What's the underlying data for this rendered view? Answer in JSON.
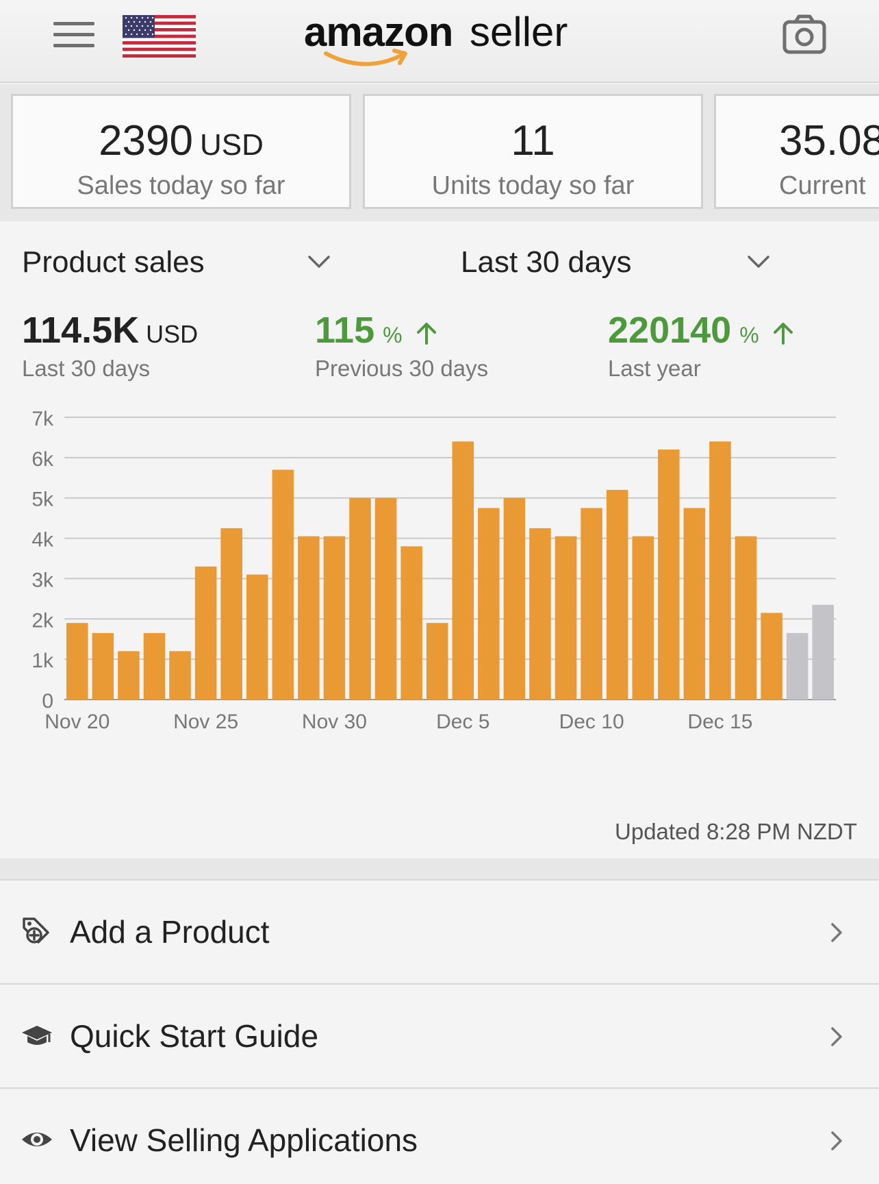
{
  "header": {
    "logo_word1": "amazon",
    "logo_word2": "seller",
    "menu_icon": "hamburger-icon",
    "flag_icon": "us-flag-icon",
    "camera_icon": "camera-icon"
  },
  "stats": [
    {
      "value": "2390",
      "unit": "USD",
      "label": "Sales today so far"
    },
    {
      "value": "11",
      "unit": "",
      "label": "Units today so far"
    },
    {
      "value": "35.08",
      "unit": "",
      "label": "Current"
    }
  ],
  "sales": {
    "metric_dropdown": "Product sales",
    "range_dropdown": "Last 30 days",
    "total_value": "114.5K",
    "total_unit": "USD",
    "total_label": "Last 30 days",
    "prev_value": "115",
    "prev_unit": "%",
    "prev_label": "Previous 30 days",
    "year_value": "220140",
    "year_unit": "%",
    "year_label": "Last year",
    "updated": "Updated 8:28 PM NZDT",
    "colors": {
      "bar": "#e99a35",
      "bar_pending": "#c4c3c8",
      "positive": "#4c9a3c"
    }
  },
  "chart_data": {
    "type": "bar",
    "title": "",
    "xlabel": "",
    "ylabel": "",
    "ylim": [
      0,
      7000
    ],
    "yticks": [
      0,
      1000,
      2000,
      3000,
      4000,
      5000,
      6000,
      7000
    ],
    "ytick_labels": [
      "0",
      "1k",
      "2k",
      "3k",
      "4k",
      "5k",
      "6k",
      "7k"
    ],
    "xtick_labels": [
      "Nov 20",
      "Nov 25",
      "Nov 30",
      "Dec 5",
      "Dec 10",
      "Dec 15"
    ],
    "categories": [
      "Nov 20",
      "Nov 21",
      "Nov 22",
      "Nov 23",
      "Nov 24",
      "Nov 25",
      "Nov 26",
      "Nov 27",
      "Nov 28",
      "Nov 29",
      "Nov 30",
      "Dec 1",
      "Dec 2",
      "Dec 3",
      "Dec 4",
      "Dec 5",
      "Dec 6",
      "Dec 7",
      "Dec 8",
      "Dec 9",
      "Dec 10",
      "Dec 11",
      "Dec 12",
      "Dec 13",
      "Dec 14",
      "Dec 15",
      "Dec 16",
      "Dec 17",
      "Dec 18",
      "Dec 19"
    ],
    "values": [
      1900,
      1650,
      1200,
      1650,
      1200,
      3300,
      4250,
      3100,
      5700,
      4050,
      4050,
      5000,
      5000,
      3800,
      1900,
      6400,
      4750,
      5000,
      4250,
      4050,
      4750,
      5200,
      4050,
      6200,
      4750,
      6400,
      4050,
      2150,
      1650,
      2350
    ],
    "pending": [
      false,
      false,
      false,
      false,
      false,
      false,
      false,
      false,
      false,
      false,
      false,
      false,
      false,
      false,
      false,
      false,
      false,
      false,
      false,
      false,
      false,
      false,
      false,
      false,
      false,
      false,
      false,
      false,
      true,
      true
    ],
    "grid": true,
    "legend": "none"
  },
  "menu": [
    {
      "label": "Add a Product",
      "icon": "add-product-tag-icon"
    },
    {
      "label": "Quick Start Guide",
      "icon": "graduation-cap-icon"
    },
    {
      "label": "View Selling Applications",
      "icon": "eye-icon"
    }
  ]
}
